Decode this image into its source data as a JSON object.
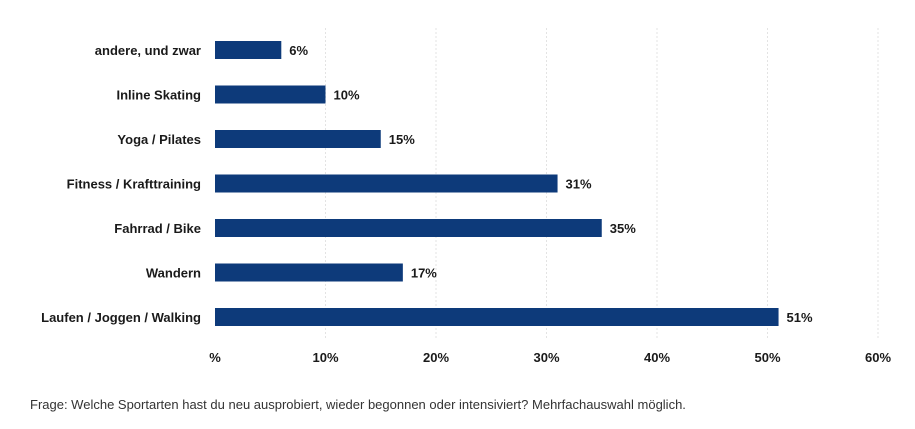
{
  "chart_data": {
    "type": "bar",
    "orientation": "horizontal",
    "categories": [
      "andere, und zwar",
      "Inline Skating",
      "Yoga / Pilates",
      "Fitness / Krafttraining",
      "Fahrrad / Bike",
      "Wandern",
      "Laufen / Joggen / Walking"
    ],
    "values": [
      6,
      10,
      15,
      31,
      35,
      17,
      51
    ],
    "value_labels": [
      "6%",
      "10%",
      "15%",
      "31%",
      "35%",
      "17%",
      "51%"
    ],
    "x_ticks": [
      "%",
      "10%",
      "20%",
      "30%",
      "40%",
      "50%",
      "60%"
    ],
    "xlim": [
      0,
      60
    ],
    "grid": true,
    "bar_color": "#0d3a7a"
  },
  "footnote": "Frage: Welche Sportarten hast du neu ausprobiert, wieder begonnen oder intensiviert? Mehrfachauswahl möglich."
}
